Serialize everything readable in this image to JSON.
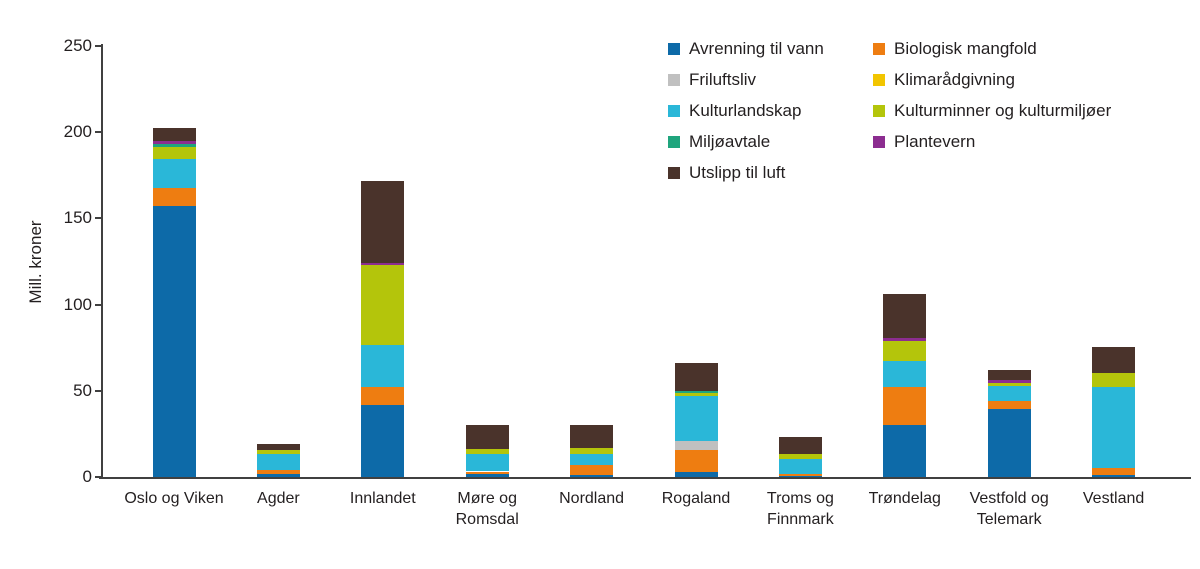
{
  "chart_data": {
    "type": "bar",
    "stacked": true,
    "ylabel": "Mill. kroner",
    "ylim": [
      0,
      250
    ],
    "yticks": [
      0,
      50,
      100,
      150,
      200,
      250
    ],
    "grid": false,
    "legend_position": "top-right",
    "legend_columns": 2,
    "categories": [
      "Oslo og Viken",
      "Agder",
      "Innlandet",
      "Møre og Romsdal",
      "Nordland",
      "Rogaland",
      "Troms og Finnmark",
      "Trøndelag",
      "Vestfold og Telemark",
      "Vestland"
    ],
    "series": [
      {
        "name": "Avrenning til vann",
        "color": "#0d6aa8",
        "values": [
          157.0,
          2.0,
          41.5,
          1.5,
          1.0,
          2.7,
          0.5,
          30.0,
          39.5,
          1.0
        ]
      },
      {
        "name": "Biologisk mangfold",
        "color": "#ee7d11",
        "values": [
          10.5,
          2.0,
          11.0,
          1.7,
          5.7,
          13.0,
          1.4,
          22.0,
          4.4,
          4.0
        ]
      },
      {
        "name": "Friluftsliv",
        "color": "#c0c0c0",
        "values": [
          0,
          0,
          0,
          0,
          0,
          5.4,
          0,
          0,
          0,
          0
        ]
      },
      {
        "name": "Klimarådgivning",
        "color": "#f2c500",
        "values": [
          0,
          0,
          0,
          0,
          0,
          0,
          0,
          0,
          0,
          0
        ]
      },
      {
        "name": "Kulturlandskap",
        "color": "#2ab7d8",
        "values": [
          17.0,
          9.5,
          24.0,
          10.0,
          6.6,
          26.0,
          8.7,
          15.5,
          8.7,
          47.5
        ]
      },
      {
        "name": "Kulturminner og kulturmiljøer",
        "color": "#b4c50b",
        "values": [
          7.0,
          2.0,
          46.5,
          3.0,
          3.5,
          1.4,
          2.9,
          11.5,
          1.9,
          7.7
        ]
      },
      {
        "name": "Miljøavtale",
        "color": "#1fa57d",
        "values": [
          1.5,
          0,
          0,
          0,
          0,
          1.3,
          0,
          0,
          0,
          0
        ]
      },
      {
        "name": "Plantevern",
        "color": "#8c2d90",
        "values": [
          2.0,
          0,
          1.2,
          0,
          0,
          0,
          0,
          1.5,
          1.6,
          0
        ]
      },
      {
        "name": "Utslipp til luft",
        "color": "#4a332b",
        "values": [
          7.5,
          3.5,
          47.5,
          14.0,
          13.6,
          16.6,
          9.6,
          25.5,
          5.8,
          15.1
        ]
      }
    ]
  }
}
